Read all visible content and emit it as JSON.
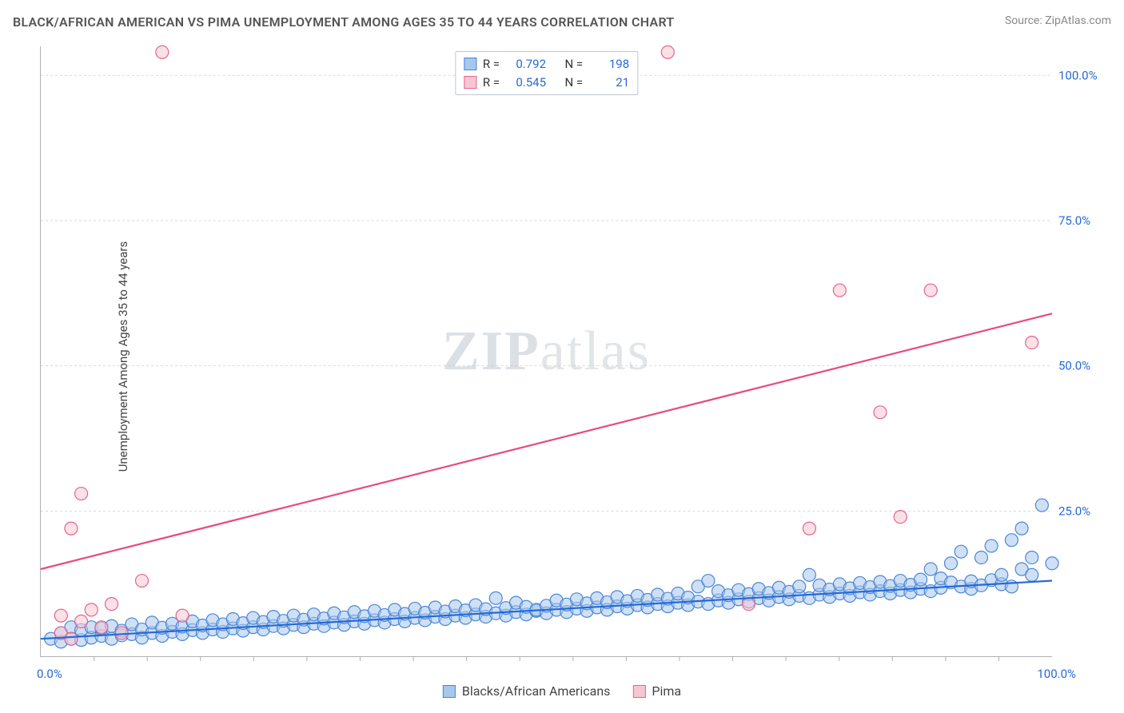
{
  "title": "BLACK/AFRICAN AMERICAN VS PIMA UNEMPLOYMENT AMONG AGES 35 TO 44 YEARS CORRELATION CHART",
  "source_prefix": "Source: ",
  "source_name": "ZipAtlas.com",
  "ylabel": "Unemployment Among Ages 35 to 44 years",
  "watermark": "ZIPatlas",
  "chart": {
    "type": "scatter",
    "xlim": [
      0,
      100
    ],
    "ylim": [
      0,
      105
    ],
    "xtick_labels": [
      "0.0%",
      "100.0%"
    ],
    "xtick_minor_count": 18,
    "yticks": [
      {
        "v": 25,
        "label": "25.0%"
      },
      {
        "v": 50,
        "label": "50.0%"
      },
      {
        "v": 75,
        "label": "75.0%"
      },
      {
        "v": 100,
        "label": "100.0%"
      }
    ],
    "grid_color": "#d9d9d9",
    "marker_radius": 8,
    "series": [
      {
        "name": "Blacks/African Americans",
        "key": "blue",
        "R": "0.792",
        "N": "198",
        "color_fill": "#a7c7ec",
        "color_stroke": "#4a86d6",
        "trend_color": "#2569d6",
        "trend": {
          "y0": 3.0,
          "y1": 13.0
        },
        "points": [
          [
            1,
            3
          ],
          [
            2,
            2.5
          ],
          [
            2,
            4
          ],
          [
            3,
            3
          ],
          [
            3,
            5
          ],
          [
            4,
            2.8
          ],
          [
            4,
            4.5
          ],
          [
            5,
            3.2
          ],
          [
            5,
            5
          ],
          [
            6,
            3.5
          ],
          [
            6,
            4.8
          ],
          [
            7,
            3
          ],
          [
            7,
            5.2
          ],
          [
            8,
            3.6
          ],
          [
            8,
            4.4
          ],
          [
            9,
            3.8
          ],
          [
            9,
            5.5
          ],
          [
            10,
            3.2
          ],
          [
            10,
            4.6
          ],
          [
            11,
            4
          ],
          [
            11,
            5.8
          ],
          [
            12,
            3.5
          ],
          [
            12,
            4.9
          ],
          [
            13,
            4.2
          ],
          [
            13,
            5.6
          ],
          [
            14,
            3.8
          ],
          [
            14,
            5.1
          ],
          [
            15,
            4.5
          ],
          [
            15,
            6
          ],
          [
            16,
            4
          ],
          [
            16,
            5.3
          ],
          [
            17,
            4.6
          ],
          [
            17,
            6.2
          ],
          [
            18,
            4.2
          ],
          [
            18,
            5.5
          ],
          [
            19,
            4.8
          ],
          [
            19,
            6.4
          ],
          [
            20,
            4.4
          ],
          [
            20,
            5.7
          ],
          [
            21,
            5
          ],
          [
            21,
            6.6
          ],
          [
            22,
            4.6
          ],
          [
            22,
            5.9
          ],
          [
            23,
            5.2
          ],
          [
            23,
            6.8
          ],
          [
            24,
            4.8
          ],
          [
            24,
            6.1
          ],
          [
            25,
            5.4
          ],
          [
            25,
            7
          ],
          [
            26,
            5
          ],
          [
            26,
            6.3
          ],
          [
            27,
            5.6
          ],
          [
            27,
            7.2
          ],
          [
            28,
            5.2
          ],
          [
            28,
            6.5
          ],
          [
            29,
            5.8
          ],
          [
            29,
            7.4
          ],
          [
            30,
            5.4
          ],
          [
            30,
            6.7
          ],
          [
            31,
            6
          ],
          [
            31,
            7.6
          ],
          [
            32,
            5.6
          ],
          [
            32,
            6.9
          ],
          [
            33,
            6.2
          ],
          [
            33,
            7.8
          ],
          [
            34,
            5.8
          ],
          [
            34,
            7.1
          ],
          [
            35,
            6.4
          ],
          [
            35,
            8
          ],
          [
            36,
            6
          ],
          [
            36,
            7.3
          ],
          [
            37,
            6.6
          ],
          [
            37,
            8.2
          ],
          [
            38,
            6.2
          ],
          [
            38,
            7.5
          ],
          [
            39,
            6.8
          ],
          [
            39,
            8.4
          ],
          [
            40,
            6.4
          ],
          [
            40,
            7.7
          ],
          [
            41,
            7
          ],
          [
            41,
            8.6
          ],
          [
            42,
            6.6
          ],
          [
            42,
            7.9
          ],
          [
            43,
            7.2
          ],
          [
            43,
            8.8
          ],
          [
            44,
            6.8
          ],
          [
            44,
            8.1
          ],
          [
            45,
            7.4
          ],
          [
            45,
            10
          ],
          [
            46,
            7
          ],
          [
            46,
            8.3
          ],
          [
            47,
            7.6
          ],
          [
            47,
            9.2
          ],
          [
            48,
            7.2
          ],
          [
            48,
            8.5
          ],
          [
            49,
            7.8
          ],
          [
            49,
            8
          ],
          [
            50,
            7.4
          ],
          [
            50,
            8.7
          ],
          [
            51,
            8
          ],
          [
            51,
            9.6
          ],
          [
            52,
            7.6
          ],
          [
            52,
            8.9
          ],
          [
            53,
            8.2
          ],
          [
            53,
            9.8
          ],
          [
            54,
            7.8
          ],
          [
            54,
            9.1
          ],
          [
            55,
            8.4
          ],
          [
            55,
            10
          ],
          [
            56,
            8
          ],
          [
            56,
            9.3
          ],
          [
            57,
            8.6
          ],
          [
            57,
            10.2
          ],
          [
            58,
            8.2
          ],
          [
            58,
            9.5
          ],
          [
            59,
            8.8
          ],
          [
            59,
            10.4
          ],
          [
            60,
            8.4
          ],
          [
            60,
            9.7
          ],
          [
            61,
            9
          ],
          [
            61,
            10.6
          ],
          [
            62,
            8.6
          ],
          [
            62,
            9.9
          ],
          [
            63,
            9.2
          ],
          [
            63,
            10.8
          ],
          [
            64,
            8.8
          ],
          [
            64,
            10.1
          ],
          [
            65,
            9.4
          ],
          [
            65,
            12
          ],
          [
            66,
            9
          ],
          [
            66,
            13
          ],
          [
            67,
            9.6
          ],
          [
            67,
            11.2
          ],
          [
            68,
            9.2
          ],
          [
            68,
            10.5
          ],
          [
            69,
            9.8
          ],
          [
            69,
            11.4
          ],
          [
            70,
            9.4
          ],
          [
            70,
            10.7
          ],
          [
            71,
            10
          ],
          [
            71,
            11.6
          ],
          [
            72,
            9.6
          ],
          [
            72,
            10.9
          ],
          [
            73,
            10.2
          ],
          [
            73,
            11.8
          ],
          [
            74,
            9.8
          ],
          [
            74,
            11.1
          ],
          [
            75,
            10.4
          ],
          [
            75,
            12
          ],
          [
            76,
            10
          ],
          [
            76,
            14
          ],
          [
            77,
            10.6
          ],
          [
            77,
            12.2
          ],
          [
            78,
            10.2
          ],
          [
            78,
            11.5
          ],
          [
            79,
            10.8
          ],
          [
            79,
            12.4
          ],
          [
            80,
            10.4
          ],
          [
            80,
            11.7
          ],
          [
            81,
            11
          ],
          [
            81,
            12.6
          ],
          [
            82,
            10.6
          ],
          [
            82,
            11.9
          ],
          [
            83,
            11.2
          ],
          [
            83,
            12.8
          ],
          [
            84,
            10.8
          ],
          [
            84,
            12.1
          ],
          [
            85,
            11.4
          ],
          [
            85,
            13
          ],
          [
            86,
            11
          ],
          [
            86,
            12.3
          ],
          [
            87,
            11.6
          ],
          [
            87,
            13.2
          ],
          [
            88,
            11.2
          ],
          [
            88,
            15
          ],
          [
            89,
            11.8
          ],
          [
            89,
            13.4
          ],
          [
            90,
            16
          ],
          [
            90,
            12.7
          ],
          [
            91,
            12
          ],
          [
            91,
            18
          ],
          [
            92,
            11.6
          ],
          [
            92,
            12.9
          ],
          [
            93,
            12.2
          ],
          [
            93,
            17
          ],
          [
            94,
            19
          ],
          [
            94,
            13.1
          ],
          [
            95,
            12.4
          ],
          [
            95,
            14
          ],
          [
            96,
            12
          ],
          [
            96,
            20
          ],
          [
            97,
            15
          ],
          [
            97,
            22
          ],
          [
            98,
            17
          ],
          [
            98,
            14
          ],
          [
            99,
            26
          ],
          [
            100,
            16
          ]
        ]
      },
      {
        "name": "Pima",
        "key": "pink",
        "R": "0.545",
        "N": "21",
        "color_fill": "#f7c6d2",
        "color_stroke": "#e36493",
        "trend_color": "#e84a7f",
        "trend": {
          "y0": 15.0,
          "y1": 59.0
        },
        "points": [
          [
            2,
            4
          ],
          [
            2,
            7
          ],
          [
            3,
            3
          ],
          [
            3,
            22
          ],
          [
            4,
            28
          ],
          [
            4,
            6
          ],
          [
            5,
            8
          ],
          [
            6,
            5
          ],
          [
            7,
            9
          ],
          [
            8,
            4
          ],
          [
            10,
            13
          ],
          [
            12,
            104
          ],
          [
            14,
            7
          ],
          [
            62,
            104
          ],
          [
            76,
            22
          ],
          [
            79,
            63
          ],
          [
            83,
            42
          ],
          [
            88,
            63
          ],
          [
            98,
            54
          ],
          [
            85,
            24
          ],
          [
            70,
            9
          ]
        ]
      }
    ]
  },
  "legend_top_labels": {
    "R": "R =",
    "N": "N ="
  },
  "legend_bottom": [
    {
      "swatch": "blue",
      "label": "Blacks/African Americans"
    },
    {
      "swatch": "pink",
      "label": "Pima"
    }
  ]
}
